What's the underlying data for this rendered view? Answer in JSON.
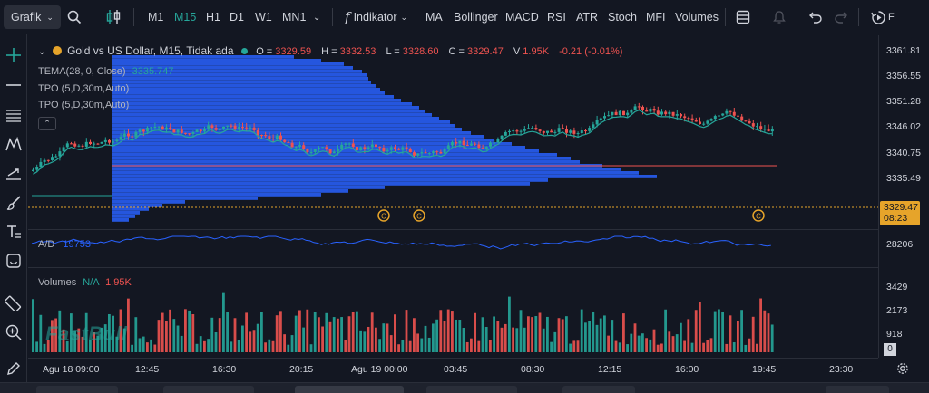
{
  "toolbar": {
    "chart_button": "Grafik",
    "timeframes": [
      "M1",
      "M15",
      "H1",
      "D1",
      "W1",
      "MN1"
    ],
    "selected_timeframe": "M15",
    "indicator_label": "Indikator",
    "quick_indicators": [
      "MA",
      "Bollinger",
      "MACD",
      "RSI",
      "ATR",
      "Stoch",
      "MFI",
      "Volumes"
    ],
    "trailing_label": "F"
  },
  "legend": {
    "title": "Gold vs US Dollar, M15, Tidak ada",
    "open_key": "O =",
    "open": "3329.59",
    "high_key": "H =",
    "high": "3332.53",
    "low_key": "L =",
    "low": "3328.60",
    "close_key": "C =",
    "close": "3329.47",
    "volume_key": "V",
    "volume": "1.95K",
    "change": "-0.21 (-0.01%)",
    "tema_label": "TEMA(28, 0, Close)",
    "tema_value": "3335.747",
    "tpo1": "TPO (5,D,30m,Auto)",
    "tpo2": "TPO (5,D,30m,Auto)",
    "ad_label": "A/D",
    "ad_value": "19753",
    "vol_label": "Volumes",
    "vol_na": "N/A",
    "vol_value": "1.95K"
  },
  "price_axis": [
    "3361.81",
    "3356.55",
    "3351.28",
    "3346.02",
    "3340.75",
    "3335.49",
    "3329.47",
    "08:23"
  ],
  "ad_axis": "28206",
  "vol_axis": [
    "3429",
    "2173",
    "918",
    "0"
  ],
  "time_axis": [
    "Agu 18 09:00",
    "12:45",
    "16:30",
    "20:15",
    "Agu 19 00:00",
    "03:45",
    "08:30",
    "12:15",
    "16:00",
    "19:45",
    "23:30"
  ],
  "watermark": "FastBull",
  "event_marker": "C",
  "colors": {
    "up": "#26a69a",
    "down": "#ef5350",
    "profile": "#2962ff",
    "tema": "#26a69a",
    "ad": "#2962ff",
    "price_tag": "#e6a42a"
  }
}
